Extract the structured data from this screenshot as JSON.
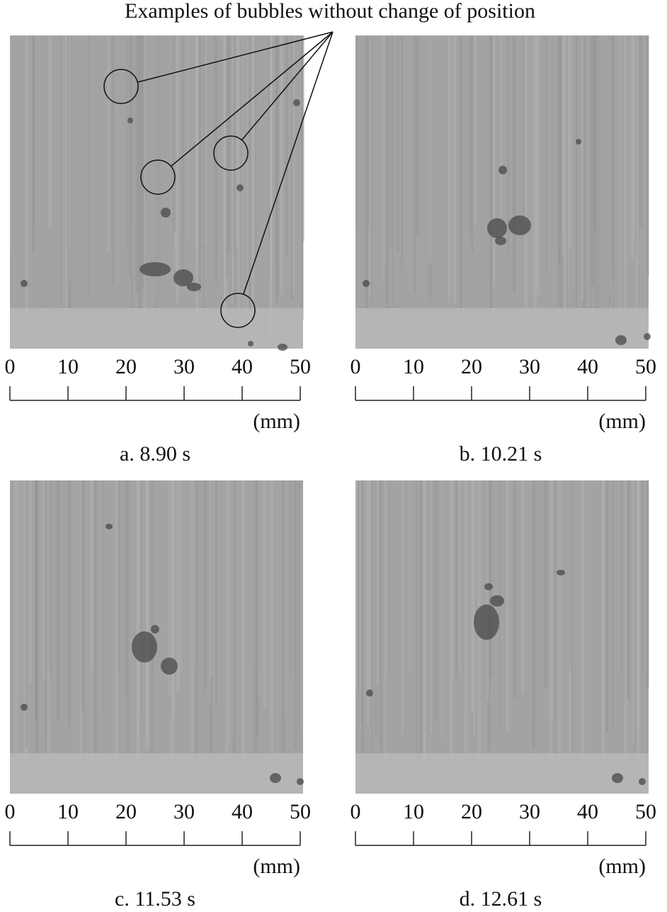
{
  "annotation": "Examples of bubbles without change of position",
  "panels": [
    {
      "caption": "a. 8.90 s",
      "unit": "(mm)",
      "xlim": [
        0,
        50
      ],
      "xticks": [
        0,
        10,
        20,
        30,
        40,
        50
      ]
    },
    {
      "caption": "b. 10.21 s",
      "unit": "(mm)",
      "xlim": [
        0,
        50
      ],
      "xticks": [
        0,
        10,
        20,
        30,
        40,
        50
      ]
    },
    {
      "caption": "c. 11.53 s",
      "unit": "(mm)",
      "xlim": [
        0,
        50
      ],
      "xticks": [
        0,
        10,
        20,
        30,
        40,
        50
      ]
    },
    {
      "caption": "d. 12.61 s",
      "unit": "(mm)",
      "xlim": [
        0,
        50
      ],
      "xticks": [
        0,
        10,
        20,
        30,
        40,
        50
      ]
    }
  ]
}
